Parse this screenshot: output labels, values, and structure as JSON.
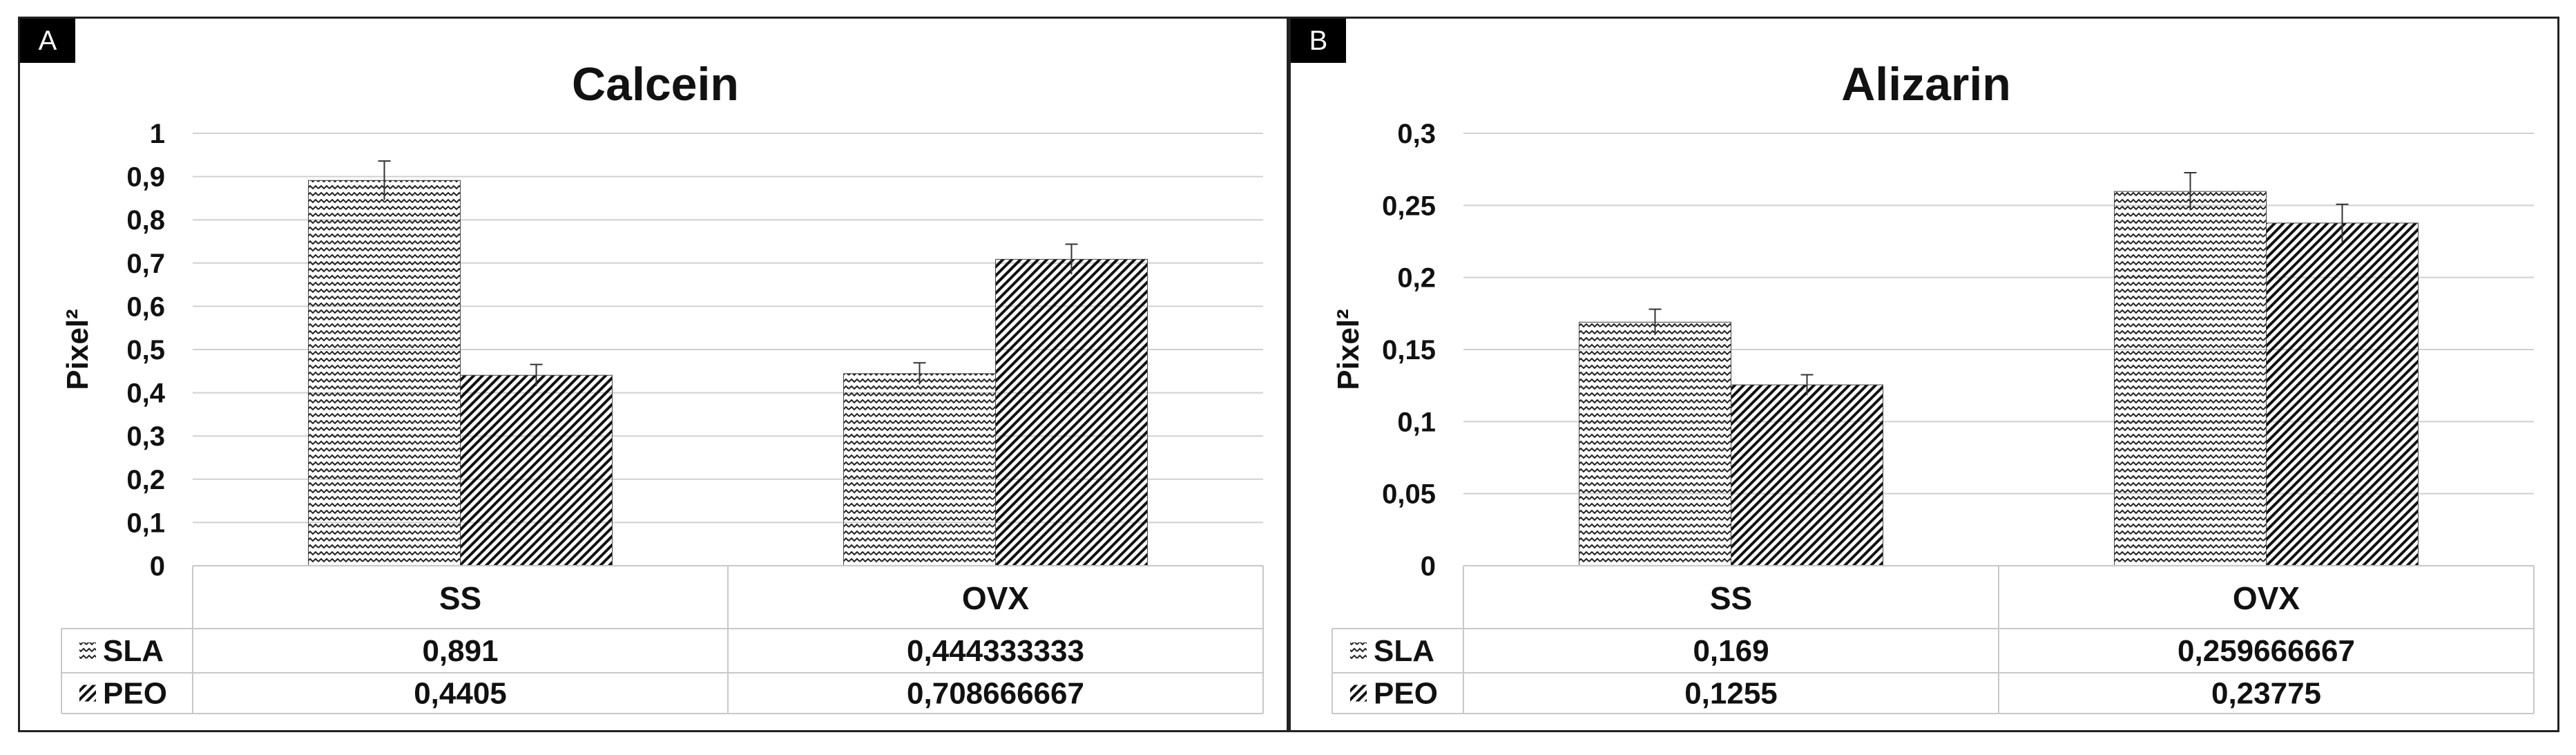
{
  "panels": [
    {
      "letter": "A"
    },
    {
      "letter": "B"
    }
  ],
  "chart_data": [
    {
      "type": "bar",
      "title": "Calcein",
      "ylabel": "Pixel²",
      "xlabel": "",
      "categories": [
        "SS",
        "OVX"
      ],
      "ylim": [
        0,
        1
      ],
      "yticks": [
        "0",
        "0,1",
        "0,2",
        "0,3",
        "0,4",
        "0,5",
        "0,6",
        "0,7",
        "0,8",
        "0,9",
        "1"
      ],
      "grid": true,
      "series": [
        {
          "name": "SLA",
          "values": [
            0.891,
            0.444333333
          ],
          "labels": [
            "0,891",
            "0,444333333"
          ],
          "errors": [
            0.045,
            0.025
          ],
          "pattern": "zigzag"
        },
        {
          "name": "PEO",
          "values": [
            0.4405,
            0.708666667
          ],
          "labels": [
            "0,4405",
            "0,708666667"
          ],
          "errors": [
            0.025,
            0.035
          ],
          "pattern": "diagonal"
        }
      ]
    },
    {
      "type": "bar",
      "title": "Alizarin",
      "ylabel": "Pixel²",
      "xlabel": "",
      "categories": [
        "SS",
        "OVX"
      ],
      "ylim": [
        0,
        0.3
      ],
      "yticks": [
        "0",
        "0,05",
        "0,1",
        "0,15",
        "0,2",
        "0,25",
        "0,3"
      ],
      "grid": true,
      "series": [
        {
          "name": "SLA",
          "values": [
            0.169,
            0.259666667
          ],
          "labels": [
            "0,169",
            "0,259666667"
          ],
          "errors": [
            0.009,
            0.013
          ],
          "pattern": "zigzag"
        },
        {
          "name": "PEO",
          "values": [
            0.1255,
            0.23775
          ],
          "labels": [
            "0,1255",
            "0,23775"
          ],
          "errors": [
            0.007,
            0.013
          ],
          "pattern": "diagonal"
        }
      ]
    }
  ]
}
